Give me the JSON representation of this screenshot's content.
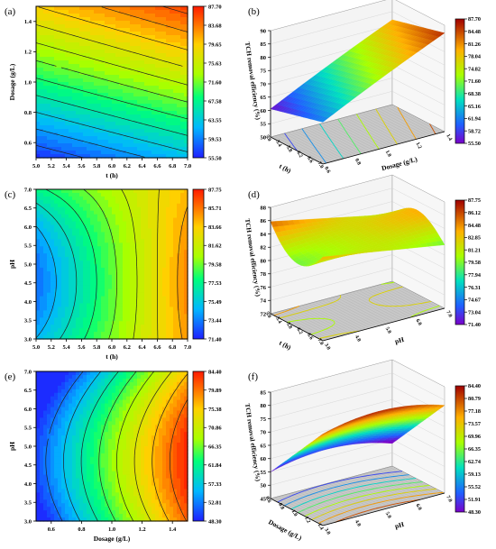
{
  "figure": {
    "panels": [
      "(a)",
      "(b)",
      "(c)",
      "(d)",
      "(e)",
      "(f)"
    ]
  },
  "chart_data": [
    {
      "panel": "(a)",
      "type": "heatmap",
      "xlabel": "t (h)",
      "ylabel": "Dosage (g/L)",
      "xlim": [
        5.0,
        7.0
      ],
      "ylim": [
        0.5,
        1.5
      ],
      "x_ticks": [
        "5.0",
        "5.2",
        "5.4",
        "5.6",
        "5.8",
        "6.0",
        "6.2",
        "6.4",
        "6.6",
        "6.8",
        "7.0"
      ],
      "y_ticks": [
        "0.6",
        "0.8",
        "1.0",
        "1.2",
        "1.4"
      ],
      "colorbar_ticks": [
        "87.70",
        "83.68",
        "79.65",
        "75.63",
        "71.60",
        "67.58",
        "63.55",
        "59.53",
        "55.50"
      ],
      "zlim": [
        55.5,
        87.7
      ],
      "contour_levels": 12,
      "trend": "increases with dosage, slightly with t"
    },
    {
      "panel": "(b)",
      "type": "surface3d",
      "zlabel": "TCH removal efficiency (%)",
      "xlabel": "t (h)",
      "ylabel": "Dosage (g/L)",
      "z_ticks": [
        "50",
        "55",
        "60",
        "65",
        "70",
        "75",
        "80",
        "85",
        "90"
      ],
      "x_ticks": [
        "5.0",
        "5.4",
        "5.8",
        "6.2",
        "6.6",
        "7.0"
      ],
      "y_ticks": [
        "0.6",
        "0.8",
        "1.0",
        "1.2",
        "1.4"
      ],
      "colorbar_ticks": [
        "87.70",
        "84.48",
        "81.26",
        "78.04",
        "74.82",
        "71.60",
        "68.38",
        "65.16",
        "61.94",
        "58.72",
        "55.50"
      ],
      "zlim": [
        55.5,
        87.7
      ]
    },
    {
      "panel": "(c)",
      "type": "heatmap",
      "xlabel": "t (h)",
      "ylabel": "pH",
      "xlim": [
        5.0,
        7.0
      ],
      "ylim": [
        3.0,
        7.0
      ],
      "x_ticks": [
        "5.0",
        "5.2",
        "5.4",
        "5.6",
        "5.8",
        "6.0",
        "6.2",
        "6.4",
        "6.6",
        "6.8",
        "7.0"
      ],
      "y_ticks": [
        "3.0",
        "3.5",
        "4.0",
        "4.5",
        "5.0",
        "5.5",
        "6.0",
        "6.5",
        "7.0"
      ],
      "colorbar_ticks": [
        "87.75",
        "85.71",
        "83.66",
        "81.62",
        "79.58",
        "77.53",
        "75.49",
        "73.44",
        "71.40"
      ],
      "zlim": [
        71.4,
        87.75
      ],
      "contour_levels": 10,
      "trend": "saddle; maximum near t=7.0, pH~4.5"
    },
    {
      "panel": "(d)",
      "type": "surface3d",
      "zlabel": "TCH removal efficiency (%)",
      "xlabel": "t (h)",
      "ylabel": "pH",
      "z_ticks": [
        "72",
        "74",
        "76",
        "78",
        "80",
        "82",
        "84",
        "86",
        "88"
      ],
      "x_ticks": [
        "5.0",
        "5.4",
        "5.8",
        "6.2",
        "6.6",
        "7.0"
      ],
      "y_ticks": [
        "3.0",
        "4.0",
        "5.0",
        "6.0",
        "7.0"
      ],
      "colorbar_ticks": [
        "87.75",
        "86.12",
        "84.48",
        "82.85",
        "81.21",
        "79.58",
        "77.94",
        "76.31",
        "74.67",
        "73.04",
        "71.40"
      ],
      "zlim": [
        71.4,
        87.75
      ]
    },
    {
      "panel": "(e)",
      "type": "heatmap",
      "xlabel": "Dosage (g/L)",
      "ylabel": "pH",
      "xlim": [
        0.5,
        1.5
      ],
      "ylim": [
        3.0,
        7.0
      ],
      "x_ticks": [
        "0.6",
        "0.8",
        "1.0",
        "1.2",
        "1.4"
      ],
      "y_ticks": [
        "3.0",
        "3.5",
        "4.0",
        "4.5",
        "5.0",
        "5.5",
        "6.0",
        "6.5",
        "7.0"
      ],
      "colorbar_ticks": [
        "84.40",
        "79.89",
        "75.38",
        "70.86",
        "66.35",
        "61.84",
        "57.33",
        "52.81",
        "48.30"
      ],
      "zlim": [
        48.3,
        84.4
      ],
      "contour_levels": 9,
      "trend": "increases with dosage; maximum near pH~4.5"
    },
    {
      "panel": "(f)",
      "type": "surface3d",
      "zlabel": "TCH removal efficiency (%)",
      "xlabel": "Dosage (g/L)",
      "ylabel": "pH",
      "z_ticks": [
        "45",
        "50",
        "55",
        "60",
        "65",
        "70",
        "75",
        "80",
        "85"
      ],
      "x_ticks": [
        "0.6",
        "0.8",
        "1.0",
        "1.2",
        "1.4"
      ],
      "y_ticks": [
        "3.0",
        "4.0",
        "5.0",
        "6.0",
        "7.0"
      ],
      "colorbar_ticks": [
        "84.40",
        "80.79",
        "77.18",
        "73.57",
        "69.96",
        "66.35",
        "62.74",
        "59.13",
        "55.52",
        "51.91",
        "48.30"
      ],
      "zlim": [
        48.3,
        84.4
      ]
    }
  ]
}
